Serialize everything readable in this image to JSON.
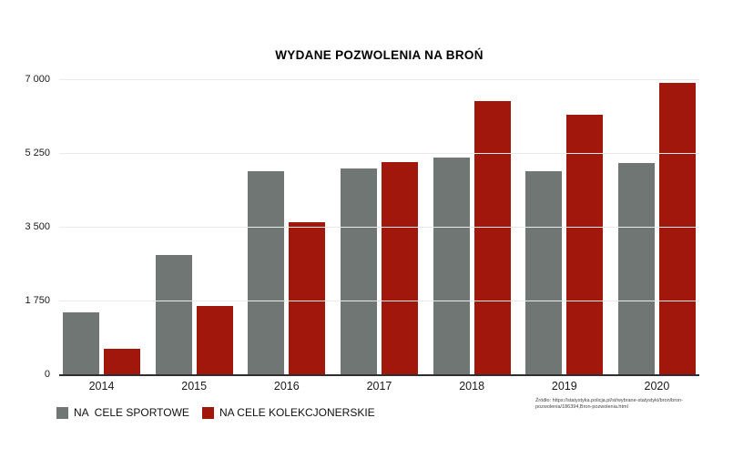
{
  "title": "WYDANE POZWOLENIA NA BROŃ",
  "chart_data": {
    "type": "bar",
    "title": "WYDANE POZWOLENIA NA BROŃ",
    "categories": [
      "2014",
      "2015",
      "2016",
      "2017",
      "2018",
      "2019",
      "2020"
    ],
    "series": [
      {
        "key": "sportowe",
        "name": "NA  CELE SPORTOWE",
        "color": "#6f7674",
        "values": [
          1470,
          2830,
          4820,
          4890,
          5150,
          4820,
          5010
        ]
      },
      {
        "key": "kolekcjonerskie",
        "name": "NA CELE KOLEKCJONERSKIE",
        "color": "#a1170c",
        "values": [
          610,
          1610,
          3600,
          5030,
          6490,
          6160,
          6920
        ]
      }
    ],
    "xlabel": "",
    "ylabel": "",
    "ylim": [
      0,
      7000
    ],
    "yticks": [
      0,
      1750,
      3500,
      5250,
      7000
    ],
    "ytick_labels": [
      "0",
      "1 750",
      "3 500",
      "5 250",
      "7 000"
    ],
    "grid": true,
    "legend_position": "bottom-left"
  },
  "legend": {
    "items": [
      {
        "label": "NA  CELE SPORTOWE",
        "color": "#6f7674"
      },
      {
        "label": "NA CELE KOLEKCJONERSKIE",
        "color": "#a1170c"
      }
    ]
  },
  "source": {
    "line1": "Źródło: https://statystyka.policja.pl/st/wybrane-statystyki/bron/bron-",
    "line2": "pozwolenia/186394,Bron-pozwolenia.html"
  },
  "colors": {
    "bar_sport": "#6f7674",
    "bar_collector": "#a1170c",
    "gridline": "#eaeaea",
    "axis": "#2f2f2f",
    "text": "#1a1a1a"
  }
}
